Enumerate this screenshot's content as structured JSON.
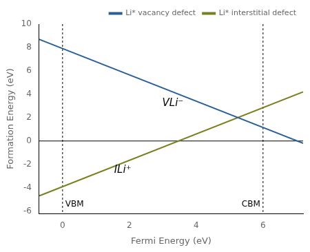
{
  "chart_data": {
    "type": "line",
    "xlabel": "Fermi Energy (eV)",
    "ylabel": "Formation Energy (eV)",
    "x": [
      -0.7,
      7.2
    ],
    "series": [
      {
        "name": "Li* vacancy defect",
        "color": "#2a6099",
        "values": [
          8.7,
          -0.2
        ]
      },
      {
        "name": "Li* interstitial defect",
        "color": "#7a8020",
        "values": [
          -4.7,
          4.2
        ]
      }
    ],
    "xlim": [
      -0.7,
      7.2
    ],
    "ylim": [
      -6.2,
      10
    ],
    "xticks": [
      0,
      2,
      4,
      6
    ],
    "yticks": [
      -6,
      -4,
      -2,
      0,
      2,
      4,
      6,
      8,
      10
    ],
    "vlines": [
      0,
      6
    ],
    "hlines": [
      0
    ],
    "annotations": [
      {
        "text": "VBM",
        "x": 0,
        "y": -5.8
      },
      {
        "text": "CBM",
        "x": 6,
        "y": -5.8
      },
      {
        "text": "VLi⁻",
        "x": 3.3,
        "y": 3.2
      },
      {
        "text": "ILi⁺",
        "x": 1.8,
        "y": -2.5
      }
    ],
    "grid": false,
    "legend": "upper right"
  }
}
